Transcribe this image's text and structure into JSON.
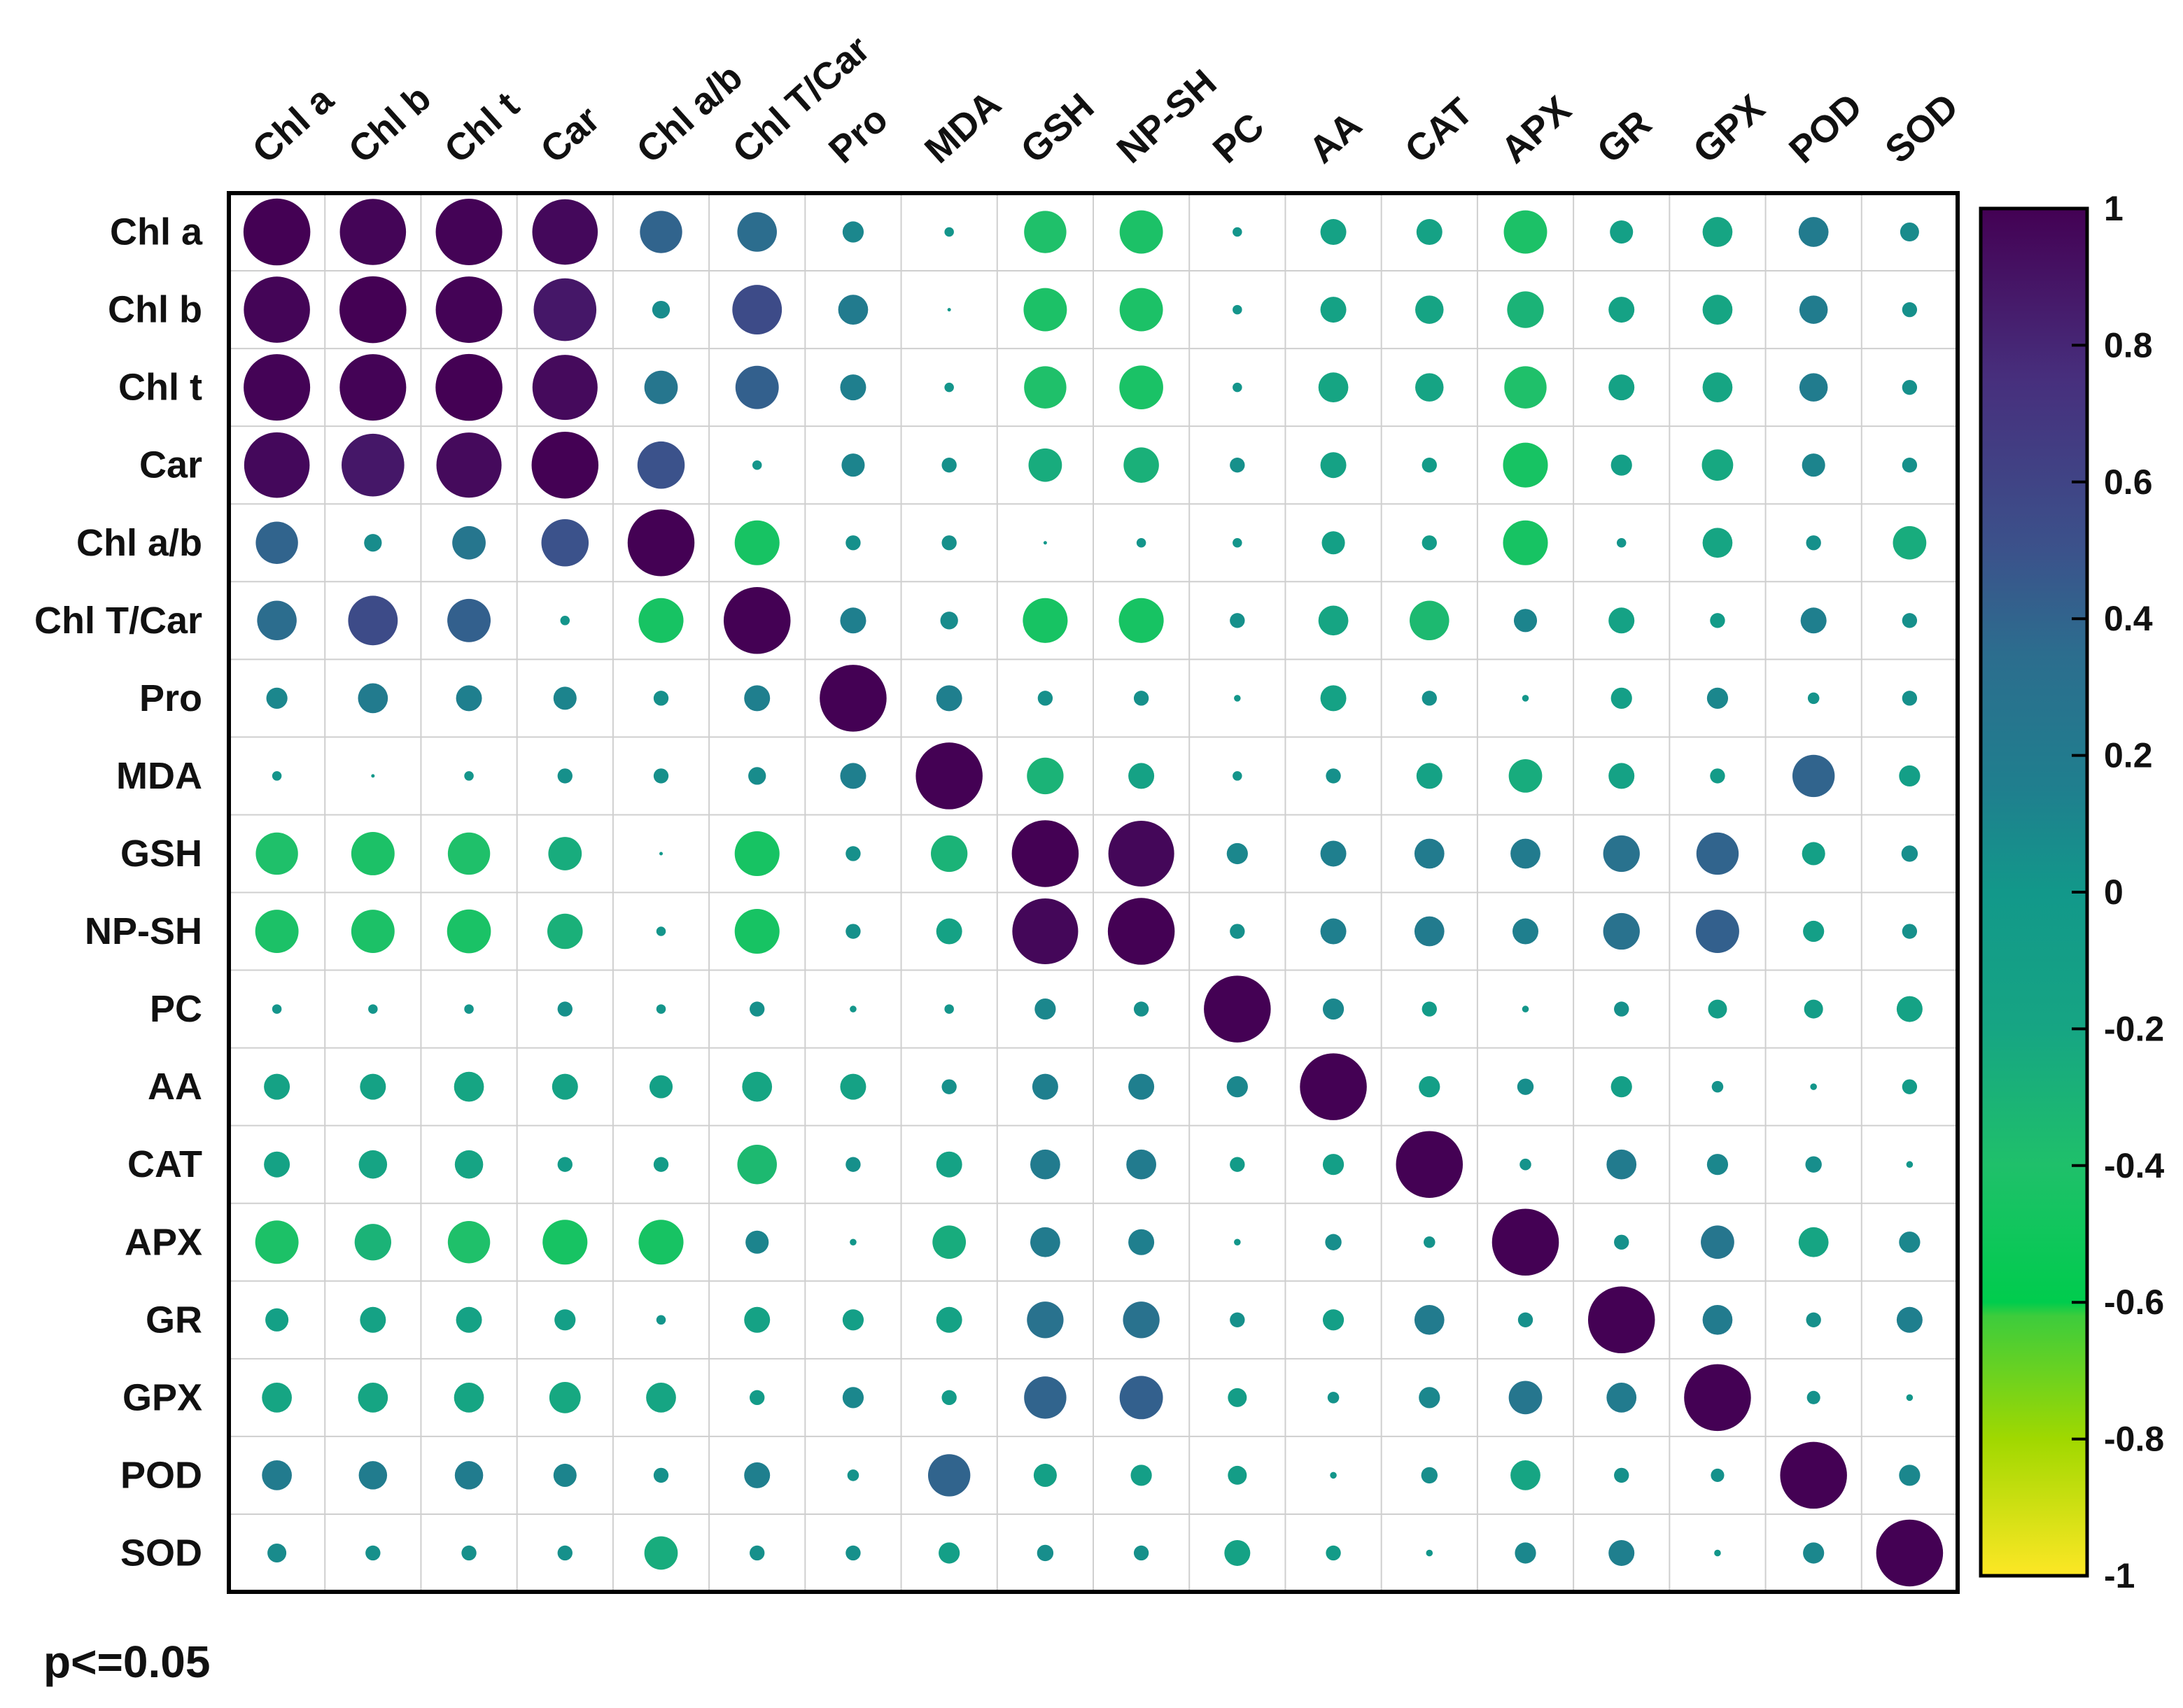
{
  "chart_data": {
    "type": "heatmap",
    "subtype": "correlation-circle-matrix",
    "variables": [
      "Chl a",
      "Chl b",
      "Chl t",
      "Car",
      "Chl a/b",
      "Chl T/Car",
      "Pro",
      "MDA",
      "GSH",
      "NP-SH",
      "PC",
      "AA",
      "CAT",
      "APX",
      "GR",
      "GPX",
      "POD",
      "SOD"
    ],
    "matrix": [
      [
        1.0,
        0.98,
        0.99,
        0.96,
        0.4,
        0.35,
        0.1,
        0.02,
        -0.4,
        -0.42,
        0.02,
        -0.15,
        -0.15,
        -0.42,
        -0.12,
        -0.2,
        0.2,
        0.08
      ],
      [
        0.98,
        1.0,
        0.99,
        0.88,
        0.07,
        0.55,
        0.2,
        0.0,
        -0.42,
        -0.42,
        0.02,
        -0.15,
        -0.18,
        -0.3,
        -0.15,
        -0.2,
        0.18,
        0.05
      ],
      [
        0.99,
        0.99,
        1.0,
        0.95,
        0.25,
        0.42,
        0.15,
        0.02,
        -0.4,
        -0.43,
        0.02,
        -0.2,
        -0.18,
        -0.4,
        -0.15,
        -0.2,
        0.18,
        0.05
      ],
      [
        0.96,
        0.88,
        0.95,
        1.0,
        0.5,
        0.02,
        0.12,
        0.05,
        -0.25,
        -0.28,
        0.05,
        -0.15,
        -0.05,
        -0.45,
        -0.1,
        -0.22,
        0.12,
        0.05
      ],
      [
        0.4,
        0.07,
        0.25,
        0.5,
        1.0,
        -0.45,
        0.05,
        0.05,
        0.0,
        0.02,
        0.02,
        -0.12,
        -0.05,
        -0.45,
        0.02,
        -0.2,
        0.05,
        -0.25
      ],
      [
        0.35,
        0.55,
        0.42,
        0.02,
        -0.45,
        1.0,
        0.15,
        0.07,
        -0.45,
        -0.45,
        0.05,
        -0.2,
        -0.35,
        0.12,
        -0.15,
        -0.05,
        0.15,
        0.05
      ],
      [
        0.1,
        0.2,
        0.15,
        0.12,
        0.05,
        0.15,
        1.0,
        0.15,
        0.05,
        0.05,
        0.01,
        -0.15,
        0.05,
        0.01,
        -0.1,
        0.1,
        0.03,
        0.05
      ],
      [
        0.02,
        0.0,
        0.02,
        0.05,
        0.05,
        0.07,
        0.15,
        1.0,
        -0.3,
        -0.15,
        0.02,
        0.05,
        -0.15,
        -0.25,
        -0.15,
        -0.05,
        0.4,
        -0.1
      ],
      [
        -0.4,
        -0.42,
        -0.4,
        -0.25,
        0.0,
        -0.45,
        0.05,
        -0.3,
        1.0,
        0.97,
        0.1,
        0.15,
        0.2,
        0.2,
        0.3,
        0.4,
        -0.12,
        0.06
      ],
      [
        -0.42,
        -0.42,
        -0.43,
        -0.28,
        0.02,
        -0.45,
        0.05,
        -0.15,
        0.97,
        1.0,
        0.05,
        0.15,
        0.2,
        0.15,
        0.3,
        0.42,
        -0.1,
        0.05
      ],
      [
        0.02,
        0.02,
        0.02,
        0.05,
        0.02,
        0.05,
        0.01,
        0.02,
        0.1,
        0.05,
        1.0,
        0.1,
        -0.05,
        0.01,
        0.05,
        -0.08,
        -0.08,
        -0.15
      ],
      [
        -0.15,
        -0.15,
        -0.2,
        -0.15,
        -0.12,
        -0.2,
        -0.15,
        0.05,
        0.15,
        0.15,
        0.1,
        1.0,
        -0.1,
        0.06,
        -0.1,
        0.03,
        0.01,
        -0.05
      ],
      [
        -0.15,
        -0.18,
        -0.18,
        -0.05,
        -0.05,
        -0.35,
        0.05,
        -0.15,
        0.2,
        0.2,
        -0.05,
        -0.1,
        1.0,
        0.03,
        0.2,
        0.1,
        0.06,
        0.01
      ],
      [
        -0.42,
        -0.3,
        -0.4,
        -0.45,
        -0.45,
        0.12,
        0.01,
        -0.25,
        0.2,
        0.15,
        0.01,
        0.06,
        0.03,
        1.0,
        0.05,
        0.25,
        -0.2,
        0.1
      ],
      [
        -0.12,
        -0.15,
        -0.15,
        -0.1,
        0.02,
        -0.15,
        -0.1,
        -0.15,
        0.3,
        0.3,
        0.05,
        -0.1,
        0.2,
        0.05,
        1.0,
        0.2,
        0.05,
        0.15
      ],
      [
        -0.2,
        -0.2,
        -0.2,
        -0.22,
        -0.2,
        -0.05,
        0.1,
        -0.05,
        0.4,
        0.42,
        -0.08,
        0.03,
        0.1,
        0.25,
        0.2,
        1.0,
        0.04,
        0.01
      ],
      [
        0.2,
        0.18,
        0.18,
        0.12,
        0.05,
        0.15,
        0.03,
        0.4,
        -0.12,
        -0.1,
        -0.08,
        0.01,
        0.06,
        -0.2,
        0.05,
        0.04,
        1.0,
        0.1
      ],
      [
        0.08,
        0.05,
        0.05,
        0.05,
        -0.25,
        0.05,
        0.05,
        -0.1,
        0.06,
        0.05,
        -0.15,
        -0.05,
        0.01,
        0.1,
        0.15,
        0.01,
        0.1,
        1.0
      ]
    ],
    "colorbar": {
      "range": [
        -1,
        1
      ],
      "ticks": [
        1,
        0.8,
        0.6,
        0.4,
        0.2,
        0,
        -0.2,
        -0.4,
        -0.6,
        -0.8,
        -1
      ],
      "tick_labels": [
        "1",
        "0.8",
        "0.6",
        "0.4",
        "0.2",
        "0",
        "-0.2",
        "-0.4",
        "-0.6",
        "-0.8",
        "-1"
      ],
      "stops": [
        {
          "value": 1,
          "color": "#440154"
        },
        {
          "value": 0.75,
          "color": "#472f7d"
        },
        {
          "value": 0.5,
          "color": "#3b528b"
        },
        {
          "value": 0.35,
          "color": "#2c6d8e"
        },
        {
          "value": 0.15,
          "color": "#1f7f8e"
        },
        {
          "value": 0,
          "color": "#12988a"
        },
        {
          "value": -0.2,
          "color": "#16a583"
        },
        {
          "value": -0.4,
          "color": "#1fc06a"
        },
        {
          "value": -0.6,
          "color": "#00cc4d"
        },
        {
          "value": -0.62,
          "color": "#3dcc3c"
        },
        {
          "value": -0.8,
          "color": "#a0d800"
        },
        {
          "value": -1,
          "color": "#fde725"
        }
      ]
    },
    "significance_note": "p<=0.05",
    "title": "",
    "xlabel": "",
    "ylabel": ""
  }
}
